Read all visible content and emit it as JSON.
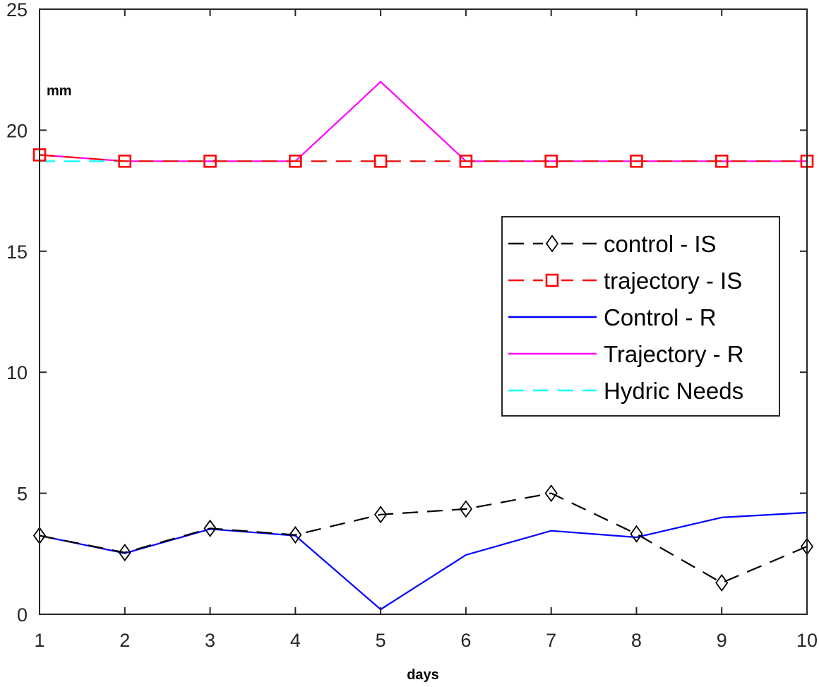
{
  "chart_data": {
    "type": "line",
    "title": "",
    "xlabel": "days",
    "ylabel": "mm",
    "xlim": [
      1,
      10
    ],
    "ylim": [
      0,
      25
    ],
    "xticks": [
      1,
      2,
      3,
      4,
      5,
      6,
      7,
      8,
      9,
      10
    ],
    "yticks": [
      0,
      5,
      10,
      15,
      20,
      25
    ],
    "grid": false,
    "legend_position": "right",
    "x": [
      1,
      2,
      3,
      4,
      5,
      6,
      7,
      8,
      9,
      10
    ],
    "series": [
      {
        "name": "control - IS",
        "values": [
          3.25,
          2.55,
          3.55,
          3.28,
          4.12,
          4.35,
          5.0,
          3.32,
          1.3,
          2.8
        ],
        "color": "#000000",
        "line_style": "dashed",
        "marker": "diamond"
      },
      {
        "name": "trajectory - IS",
        "values": [
          18.98,
          18.72,
          18.72,
          18.72,
          18.72,
          18.72,
          18.72,
          18.72,
          18.72,
          18.72
        ],
        "color": "#ff0000",
        "line_style": "dashed",
        "marker": "square"
      },
      {
        "name": "Control - R",
        "values": [
          3.25,
          2.52,
          3.52,
          3.25,
          0.2,
          2.45,
          3.45,
          3.18,
          4.0,
          4.2
        ],
        "color": "#0000ff",
        "line_style": "solid",
        "marker": "none"
      },
      {
        "name": "Trajectory - R",
        "values": [
          18.98,
          18.72,
          18.72,
          18.72,
          22.0,
          18.72,
          18.72,
          18.72,
          18.72,
          18.72
        ],
        "color": "#ff00ff",
        "line_style": "solid",
        "marker": "none"
      },
      {
        "name": "Hydric Needs",
        "values": [
          18.72,
          18.72,
          18.72,
          18.72,
          18.72,
          18.72,
          18.72,
          18.72,
          18.72,
          18.72
        ],
        "color": "#00ffff",
        "line_style": "dashed",
        "marker": "none"
      }
    ]
  }
}
